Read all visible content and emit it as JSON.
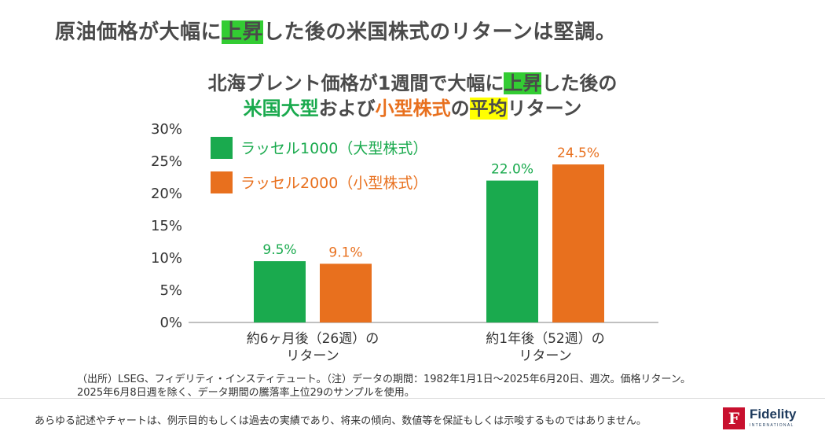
{
  "headline": {
    "before": "原油価格が大幅に",
    "highlight": "上昇",
    "after": "した後の米国株式のリターンは堅調。"
  },
  "chart_title": {
    "line1_before": "北海ブレント価格が1週間で大幅に",
    "line1_highlight": "上昇",
    "line1_after": "した後の",
    "line2_green": "米国大型",
    "line2_mid": "および",
    "line2_orange": "小型株式",
    "line2_of": "の",
    "line2_highlight": "平均",
    "line2_after": "リターン"
  },
  "colors": {
    "green": "#1aaa4e",
    "orange": "#e8701e",
    "highlight_green": "#33cc33",
    "highlight_yellow": "#ffff00",
    "logo_red": "#c8102e",
    "logo_navy": "#1d3a5c"
  },
  "chart_data": {
    "type": "bar",
    "categories": [
      [
        "約6ヶ月後（26週）の",
        "リターン"
      ],
      [
        "約1年後（52週）の",
        "リターン"
      ]
    ],
    "series": [
      {
        "name": "ラッセル1000（大型株式）",
        "values": [
          9.5,
          22.0
        ],
        "labels": [
          "9.5%",
          "22.0%"
        ],
        "color": "#1aaa4e"
      },
      {
        "name": "ラッセル2000（小型株式）",
        "values": [
          9.1,
          24.5
        ],
        "labels": [
          "9.1%",
          "24.5%"
        ],
        "color": "#e8701e"
      }
    ],
    "ylim": [
      0,
      30
    ],
    "yticks": [
      "0%",
      "5%",
      "10%",
      "15%",
      "20%",
      "25%",
      "30%"
    ],
    "grid": false,
    "legend_position": "top-left"
  },
  "source": {
    "line1": "（出所）LSEG、フィデリティ・インスティテュート。（注）データの期間：1982年1月1日～2025年6月20日、週次。価格リターン。",
    "line2": "2025年6月8日週を除く、データ期間の騰落率上位29のサンプルを使用。"
  },
  "disclaimer": "あらゆる記述やチャートは、例示目的もしくは過去の実績であり、将来の傾向、数値等を保証もしくは示唆するものではありません。",
  "logo": {
    "mark": "F",
    "word": "Fidelity",
    "sub": "INTERNATIONAL"
  }
}
